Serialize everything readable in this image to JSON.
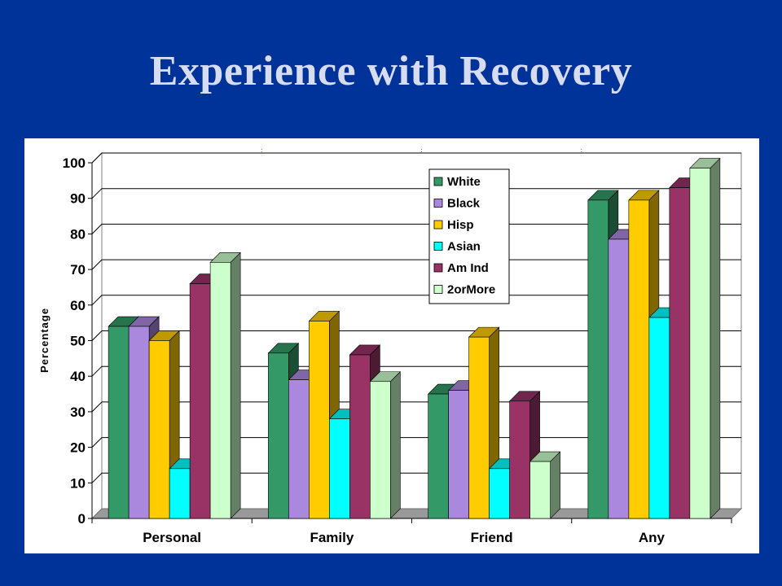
{
  "slide": {
    "title": "Experience with Recovery"
  },
  "chart_data": {
    "type": "bar",
    "title": "",
    "xlabel": "",
    "ylabel": "Percentage",
    "ylim": [
      0,
      100
    ],
    "yticks": [
      0,
      10,
      20,
      30,
      40,
      50,
      60,
      70,
      80,
      90,
      100
    ],
    "categories": [
      "Personal",
      "Family",
      "Friend",
      "Any"
    ],
    "series": [
      {
        "name": "White",
        "color": "#339966",
        "values": [
          54,
          46.5,
          35,
          89.5
        ]
      },
      {
        "name": "Black",
        "color": "#aa88dd",
        "values": [
          54,
          39,
          36,
          78.5
        ]
      },
      {
        "name": "Hisp",
        "color": "#ffcc00",
        "values": [
          50,
          55.5,
          51,
          89.5
        ]
      },
      {
        "name": "Asian",
        "color": "#00ffff",
        "values": [
          14,
          28,
          14,
          56.5
        ]
      },
      {
        "name": "Am Ind",
        "color": "#993366",
        "values": [
          66,
          46,
          33,
          93
        ]
      },
      {
        "name": "2orMore",
        "color": "#ccffcc",
        "values": [
          72,
          38.5,
          16,
          98.5
        ]
      }
    ],
    "grid": true,
    "legend": "top-center"
  }
}
